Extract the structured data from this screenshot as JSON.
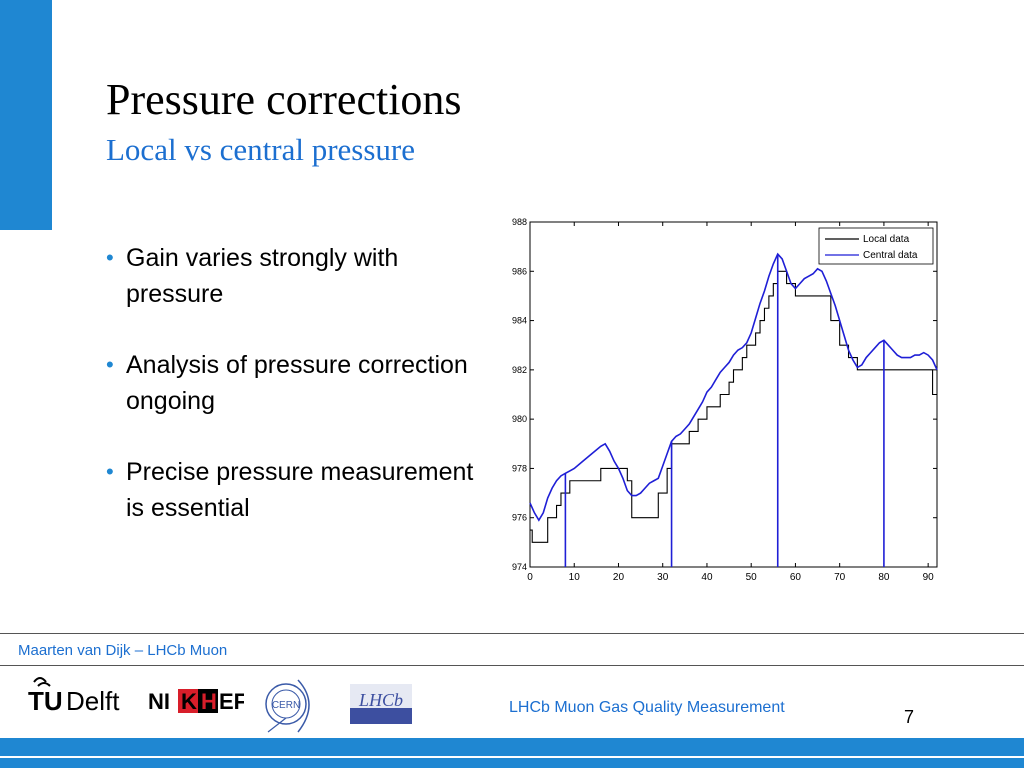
{
  "slide": {
    "title": "Pressure corrections",
    "subtitle": "Local vs central pressure",
    "bullets": [
      "Gain varies strongly with pressure",
      "Analysis of pressure correction ongoing",
      "Precise pressure measurement is essential"
    ],
    "bullet_glyph": "•"
  },
  "footer": {
    "author": "Maarten van Dijk – LHCb Muon",
    "title": "LHCb Muon Gas Quality Measurement",
    "page": "7",
    "logos": {
      "tudelft_tu": "TU",
      "tudelft_delft": "Delft",
      "nikhef_left": "NI",
      "nikhef_k": "K",
      "nikhef_h": "H",
      "nikhef_right": "EF",
      "cern": "CERN",
      "lhcb": "LHCb"
    }
  },
  "colors": {
    "accent": "#1f87d2",
    "subtitle": "#1c6fd0",
    "local_series": "#000000",
    "central_series": "#1f1fd6",
    "nikhef_red": "#d81e2a"
  },
  "chart_data": {
    "type": "line",
    "xlim": [
      0,
      92
    ],
    "ylim": [
      974,
      988
    ],
    "xticks": [
      0,
      10,
      20,
      30,
      40,
      50,
      60,
      70,
      80,
      90
    ],
    "yticks": [
      974,
      976,
      978,
      980,
      982,
      984,
      986,
      988
    ],
    "xlabel": "",
    "ylabel": "",
    "title": "",
    "legend_position": "top-right",
    "grid": false,
    "series": [
      {
        "name": "Local data",
        "color": "#000000",
        "step": true,
        "x": [
          0,
          0.5,
          1,
          4,
          6,
          7,
          9,
          12,
          16,
          22,
          23,
          28,
          29,
          31,
          32,
          34,
          36,
          38,
          40,
          41,
          43,
          45,
          46,
          47,
          48,
          49,
          50,
          51,
          52,
          53,
          54,
          55,
          56,
          57,
          58,
          59,
          60,
          61,
          62,
          63,
          68,
          70,
          72,
          74,
          75,
          76,
          77,
          80,
          82,
          84,
          86,
          88,
          90,
          91,
          92
        ],
        "y": [
          975.5,
          975,
          975,
          976,
          976.5,
          977,
          977.5,
          977.5,
          978,
          977.5,
          976,
          976,
          977,
          978,
          979,
          979,
          979.5,
          980,
          980.5,
          980.5,
          981,
          981.5,
          982,
          982,
          982.5,
          983,
          983,
          983.5,
          984,
          984.5,
          985,
          985.5,
          986,
          986,
          985.5,
          985.5,
          985,
          985,
          985,
          985,
          984,
          983,
          982.5,
          982,
          982,
          982,
          982,
          982,
          982,
          982,
          982,
          982,
          982,
          981,
          981
        ]
      },
      {
        "name": "Central data",
        "color": "#1f1fd6",
        "step": false,
        "x": [
          0,
          1,
          2,
          3,
          4,
          5,
          6,
          7,
          8,
          9,
          10,
          12,
          14,
          16,
          17,
          18,
          19,
          20,
          21,
          22,
          23,
          24,
          25,
          26,
          27,
          28,
          29,
          30,
          31,
          32,
          33,
          34,
          35,
          36,
          37,
          38,
          39,
          40,
          41,
          42,
          43,
          44,
          45,
          46,
          47,
          48,
          49,
          50,
          51,
          52,
          53,
          54,
          55,
          56,
          57,
          58,
          59,
          60,
          61,
          62,
          63,
          64,
          65,
          66,
          67,
          68,
          69,
          70,
          71,
          72,
          73,
          74,
          75,
          76,
          77,
          78,
          79,
          80,
          81,
          82,
          83,
          84,
          85,
          86,
          87,
          88,
          89,
          90,
          91,
          92
        ],
        "y": [
          976.6,
          976.2,
          975.9,
          976.2,
          976.8,
          977.2,
          977.5,
          977.7,
          977.8,
          977.9,
          978,
          978.3,
          978.6,
          978.9,
          979,
          978.7,
          978.3,
          978,
          977.6,
          977.1,
          976.9,
          976.9,
          977,
          977.2,
          977.4,
          977.5,
          977.6,
          978.1,
          978.6,
          979.1,
          979.3,
          979.4,
          979.6,
          979.8,
          980.1,
          980.4,
          980.7,
          981.1,
          981.3,
          981.6,
          981.9,
          982.1,
          982.3,
          982.6,
          982.8,
          982.9,
          983.1,
          983.5,
          984.1,
          984.7,
          985.2,
          985.8,
          986.3,
          986.7,
          986.5,
          986,
          985.5,
          985.3,
          985.5,
          985.7,
          985.8,
          985.9,
          986.1,
          986,
          985.6,
          985.1,
          984.6,
          984,
          983.4,
          982.8,
          982.4,
          982.1,
          982.2,
          982.5,
          982.7,
          982.9,
          983.1,
          983.2,
          983,
          982.8,
          982.6,
          982.5,
          982.5,
          982.5,
          982.6,
          982.6,
          982.7,
          982.6,
          982.4,
          982
        ]
      }
    ],
    "spikes": {
      "color": "#1f1fd6",
      "x": [
        8,
        32,
        56,
        80
      ],
      "y_bottom": 974
    }
  }
}
